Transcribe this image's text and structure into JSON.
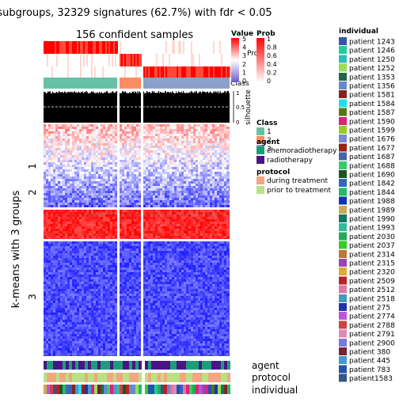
{
  "title": "subgroups, 32329 signatures (62.7%) with fdr < 0.05",
  "subtitle": "156 confident samples",
  "row_title": "k-means with 3 groups",
  "colors": {
    "class1": "#66C2A5",
    "class2": "#FC8D62",
    "class3": "#8DA0CB",
    "agent_chemo": "#1B9E77",
    "agent_radio": "#4A1486",
    "protocol_during": "#F4A582",
    "protocol_prior": "#B8E186",
    "heat_high": "#FF0000",
    "heat_mid": "#FFFFFF",
    "heat_low": "#0000FF",
    "prob_high": "#FF0000",
    "silhouette": "#000000"
  },
  "annotations": {
    "prob_label": "Prob",
    "class_label": "Class",
    "silhouette_label": "silhouette",
    "agent_label": "agent",
    "protocol_label": "protocol",
    "individual_label": "individual"
  },
  "legends": {
    "value": {
      "title": "Value",
      "ticks": [
        "5",
        "4",
        "3",
        "2",
        "1",
        "0"
      ]
    },
    "prob": {
      "title": "Prob",
      "ticks": [
        "1",
        "0.8",
        "0.6",
        "0.4",
        "0.2",
        "0"
      ]
    },
    "class": {
      "title": "Class",
      "items": [
        "1",
        "2",
        "3"
      ]
    },
    "agent": {
      "title": "agent",
      "items": [
        "chemoradiotherapy",
        "radiotherapy"
      ]
    },
    "protocol": {
      "title": "protocol",
      "items": [
        "during treatment",
        "prior to treatment"
      ]
    },
    "individual": {
      "title": "individual",
      "items": [
        "patient 1243",
        "patient 1246",
        "patient 1250",
        "patient 1252",
        "patient 1353",
        "patient 1356",
        "patient 1581",
        "patient 1584",
        "patient 1587",
        "patient 1590",
        "patient 1599",
        "patient 1676",
        "patient 1677",
        "patient 1687",
        "patient 1688",
        "patient 1690",
        "patient 1842",
        "patient 1844",
        "patient 1988",
        "patient 1989",
        "patient 1990",
        "patient 1993",
        "patient 2030",
        "patient 2037",
        "patient 2314",
        "patient 2315",
        "patient 2320",
        "patient 2509",
        "patient 2512",
        "patient 2518",
        "patient 275",
        "patient 2774",
        "patient 2788",
        "patient 2791",
        "patient 2900",
        "patient 380",
        "patient 445",
        "patient 783",
        "patient1583"
      ],
      "colors": [
        "#3355AA",
        "#22CC99",
        "#33BBBB",
        "#99DD55",
        "#226644",
        "#6688CC",
        "#882222",
        "#22DDEE",
        "#557711",
        "#DD2277",
        "#99CC22",
        "#7788DD",
        "#992211",
        "#4466AA",
        "#33CC66",
        "#1A5522",
        "#3366BB",
        "#22BB66",
        "#1133BB",
        "#CCAA55",
        "#117766",
        "#33BB99",
        "#22AA55",
        "#33CC22",
        "#BB7733",
        "#9944BB",
        "#DDAA33",
        "#BB2222",
        "#DD77AA",
        "#4499BB",
        "#2233AA",
        "#BB55DD",
        "#CC4444",
        "#DD88BB",
        "#7777DD",
        "#772233",
        "#4499CC",
        "#2255AA",
        "#335588"
      ]
    }
  },
  "chart_data": {
    "type": "heatmap",
    "title": "subgroups, 32329 signatures (62.7%) with fdr < 0.05",
    "subtitle": "156 confident samples",
    "ylabel": "k-means with 3 groups",
    "row_groups": [
      "1",
      "2",
      "3"
    ],
    "column_classes": [
      "1",
      "2",
      "3"
    ],
    "value_range": [
      0,
      5
    ],
    "prob_range": [
      0,
      1
    ],
    "silhouette_range": [
      0,
      1
    ],
    "silhouette_ticks": [
      "1",
      "0.5",
      "0"
    ],
    "bottom_annotations": [
      "agent",
      "protocol",
      "individual"
    ]
  }
}
